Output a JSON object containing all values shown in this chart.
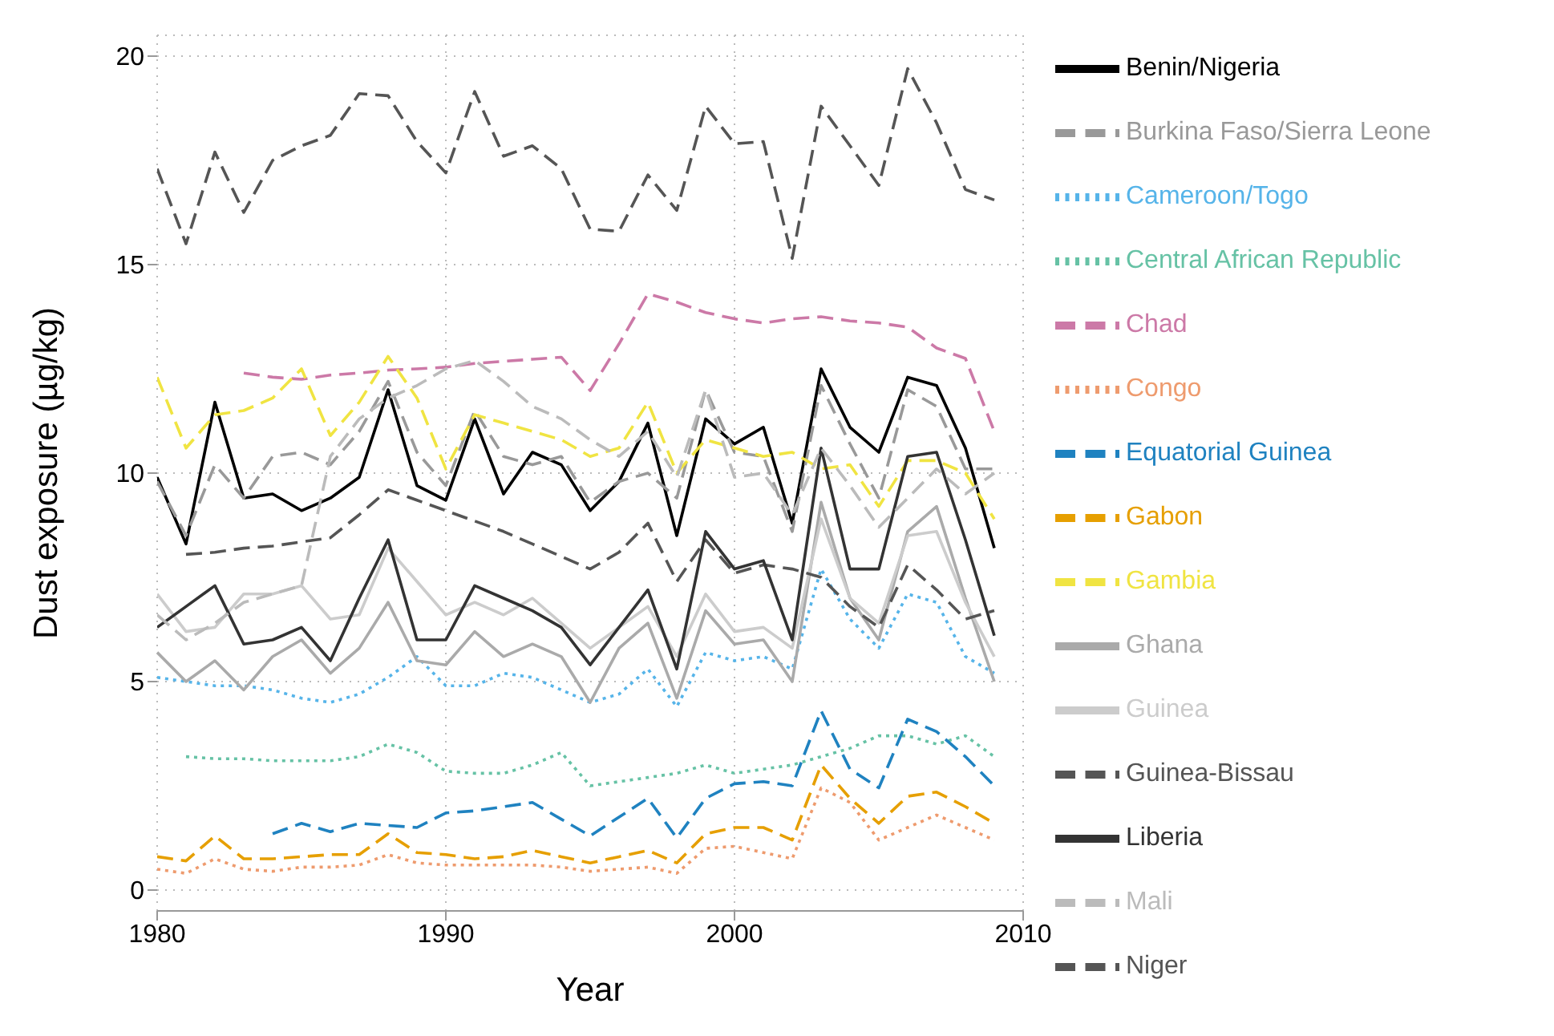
{
  "chart_data": {
    "type": "line",
    "xlabel": "Year",
    "ylabel": "Dust exposure (µg/kg)",
    "x": [
      1980,
      1981,
      1982,
      1983,
      1984,
      1985,
      1986,
      1987,
      1988,
      1989,
      1990,
      1991,
      1992,
      1993,
      1994,
      1995,
      1996,
      1997,
      1998,
      1999,
      2000,
      2001,
      2002,
      2003,
      2004,
      2005,
      2006,
      2007,
      2008,
      2009
    ],
    "xlim": [
      1980,
      2010
    ],
    "xticks": [
      1980,
      1990,
      2000,
      2010
    ],
    "ylim": [
      -0.5,
      20.5
    ],
    "yticks": [
      0,
      5,
      10,
      15,
      20
    ],
    "grid": true,
    "legend": "right",
    "series": [
      {
        "name": "Benin/Nigeria",
        "color": "#000000",
        "line_style": "solid",
        "values": [
          9.9,
          8.3,
          11.7,
          9.4,
          9.5,
          9.1,
          9.4,
          9.9,
          12.0,
          9.7,
          9.35,
          11.3,
          9.5,
          10.5,
          10.2,
          9.1,
          9.8,
          11.2,
          8.5,
          11.3,
          10.7,
          11.1,
          8.8,
          12.5,
          11.1,
          10.5,
          12.3,
          12.1,
          10.6,
          8.2
        ]
      },
      {
        "name": "Burkina Faso/Sierra Leone",
        "color": "#999999",
        "line_style": "dashed",
        "values": [
          9.8,
          8.5,
          10.2,
          9.4,
          10.4,
          10.5,
          10.2,
          11.0,
          12.2,
          10.5,
          9.7,
          11.5,
          10.4,
          10.2,
          10.4,
          9.3,
          9.8,
          10.0,
          9.4,
          12.0,
          10.5,
          10.4,
          8.6,
          12.1,
          10.7,
          9.4,
          12.0,
          11.6,
          10.1,
          10.1
        ]
      },
      {
        "name": "Cameroon/Togo",
        "color": "#56b4e9",
        "line_style": "dotted",
        "values": [
          5.1,
          5.0,
          4.9,
          4.9,
          4.8,
          4.6,
          4.5,
          4.7,
          5.1,
          5.6,
          4.9,
          4.9,
          5.2,
          5.1,
          4.8,
          4.5,
          4.7,
          5.3,
          4.4,
          5.7,
          5.5,
          5.6,
          5.3,
          7.7,
          6.5,
          5.8,
          7.1,
          6.9,
          5.6,
          5.2
        ]
      },
      {
        "name": "Central African Republic",
        "color": "#66c2a5",
        "line_style": "dotted",
        "values": [
          null,
          3.2,
          3.15,
          3.15,
          3.1,
          3.1,
          3.1,
          3.2,
          3.5,
          3.3,
          2.85,
          2.8,
          2.8,
          3.0,
          3.3,
          2.5,
          2.6,
          2.7,
          2.8,
          3.0,
          2.8,
          2.9,
          3.0,
          3.2,
          3.4,
          3.7,
          3.7,
          3.5,
          3.7,
          3.2
        ]
      },
      {
        "name": "Chad",
        "color": "#cc79a7",
        "line_style": "dashed",
        "values": [
          null,
          null,
          null,
          12.4,
          12.3,
          12.25,
          12.35,
          12.4,
          12.47,
          12.5,
          12.54,
          12.63,
          12.68,
          12.73,
          12.78,
          11.98,
          13.1,
          14.3,
          14.1,
          13.85,
          13.7,
          13.6,
          13.7,
          13.75,
          13.65,
          13.6,
          13.5,
          13.0,
          12.75,
          11.0
        ]
      },
      {
        "name": "Congo",
        "color": "#ee9b6e",
        "line_style": "dotted",
        "values": [
          0.5,
          0.4,
          0.75,
          0.5,
          0.45,
          0.55,
          0.55,
          0.6,
          0.85,
          0.65,
          0.6,
          0.6,
          0.6,
          0.6,
          0.55,
          0.45,
          0.5,
          0.55,
          0.4,
          1.0,
          1.05,
          0.9,
          0.75,
          2.45,
          2.1,
          1.2,
          1.5,
          1.8,
          1.5,
          1.2
        ]
      },
      {
        "name": "Equatorial Guinea",
        "color": "#1f82c0",
        "line_style": "dashed",
        "values": [
          null,
          null,
          null,
          null,
          1.35,
          1.6,
          1.4,
          1.6,
          1.55,
          1.5,
          1.85,
          1.9,
          2.0,
          2.1,
          1.7,
          1.3,
          1.75,
          2.2,
          1.25,
          2.2,
          2.55,
          2.6,
          2.5,
          4.3,
          2.9,
          2.45,
          4.1,
          3.8,
          3.2,
          2.5
        ]
      },
      {
        "name": "Gabon",
        "color": "#e69f00",
        "line_style": "dashed",
        "values": [
          0.8,
          0.7,
          1.3,
          0.75,
          0.75,
          0.8,
          0.85,
          0.85,
          1.35,
          0.9,
          0.85,
          0.75,
          0.8,
          0.95,
          0.8,
          0.65,
          0.8,
          0.95,
          0.65,
          1.35,
          1.5,
          1.5,
          1.2,
          3.0,
          2.2,
          1.6,
          2.25,
          2.35,
          2.0,
          1.6
        ]
      },
      {
        "name": "Gambia",
        "color": "#f0e442",
        "line_style": "dashed",
        "values": [
          12.3,
          10.6,
          11.4,
          11.5,
          11.8,
          12.5,
          10.9,
          11.7,
          12.8,
          11.8,
          10.1,
          11.4,
          11.2,
          11.0,
          10.8,
          10.4,
          10.6,
          11.7,
          10.0,
          10.8,
          10.6,
          10.4,
          10.5,
          10.1,
          10.2,
          9.2,
          10.3,
          10.3,
          10.0,
          8.9
        ]
      },
      {
        "name": "Ghana",
        "color": "#aaaaaa",
        "line_style": "solid",
        "values": [
          5.7,
          5.0,
          5.5,
          4.8,
          5.6,
          6.0,
          5.2,
          5.8,
          6.9,
          5.5,
          5.4,
          6.2,
          5.6,
          5.9,
          5.6,
          4.5,
          5.8,
          6.4,
          4.6,
          6.7,
          5.9,
          6.0,
          5.0,
          9.3,
          7.0,
          6.0,
          8.6,
          9.2,
          7.0,
          5.0
        ]
      },
      {
        "name": "Guinea",
        "color": "#cccccc",
        "line_style": "solid",
        "values": [
          7.1,
          6.2,
          6.3,
          7.1,
          7.1,
          7.3,
          6.5,
          6.6,
          8.2,
          7.4,
          6.6,
          6.9,
          6.6,
          7.0,
          6.4,
          5.8,
          6.3,
          6.8,
          5.6,
          7.1,
          6.2,
          6.3,
          5.8,
          8.9,
          7.0,
          6.4,
          8.5,
          8.6,
          6.9,
          5.6
        ]
      },
      {
        "name": "Guinea-Bissau",
        "color": "#555555",
        "line_style": "dashed",
        "values": [
          null,
          8.05,
          8.1,
          8.2,
          8.25,
          8.35,
          8.45,
          9.0,
          9.6,
          9.35,
          9.1,
          8.85,
          8.6,
          8.3,
          8.0,
          7.7,
          8.1,
          8.8,
          7.4,
          8.4,
          7.6,
          7.8,
          7.7,
          7.5,
          6.8,
          6.3,
          7.8,
          7.2,
          6.5,
          6.7
        ]
      },
      {
        "name": "Liberia",
        "color": "#333333",
        "line_style": "solid",
        "values": [
          6.3,
          6.8,
          7.3,
          5.9,
          6.0,
          6.3,
          5.5,
          7.0,
          8.4,
          6.0,
          6.0,
          7.3,
          7.0,
          6.7,
          6.3,
          5.4,
          6.3,
          7.2,
          5.3,
          8.6,
          7.7,
          7.9,
          6.0,
          10.6,
          7.7,
          7.7,
          10.4,
          10.5,
          8.4,
          6.1
        ]
      },
      {
        "name": "Mali",
        "color": "#bbbbbb",
        "line_style": "dashed",
        "values": [
          6.6,
          6.0,
          6.4,
          6.9,
          7.1,
          7.3,
          10.4,
          11.3,
          11.8,
          12.1,
          12.5,
          12.7,
          12.2,
          11.6,
          11.3,
          10.8,
          10.4,
          11.0,
          9.9,
          12.0,
          9.9,
          10.0,
          9.0,
          10.6,
          9.7,
          8.7,
          9.4,
          10.1,
          9.5,
          10.0
        ]
      },
      {
        "name": "Niger",
        "color": "#555555",
        "line_style": "dashed",
        "values": [
          17.3,
          15.5,
          17.7,
          16.25,
          17.5,
          17.85,
          18.1,
          19.1,
          19.05,
          17.95,
          17.2,
          19.15,
          17.6,
          17.85,
          17.3,
          15.85,
          15.8,
          17.15,
          16.3,
          18.8,
          17.9,
          17.95,
          15.15,
          18.8,
          17.85,
          16.9,
          19.7,
          18.4,
          16.8,
          16.55
        ]
      }
    ]
  }
}
